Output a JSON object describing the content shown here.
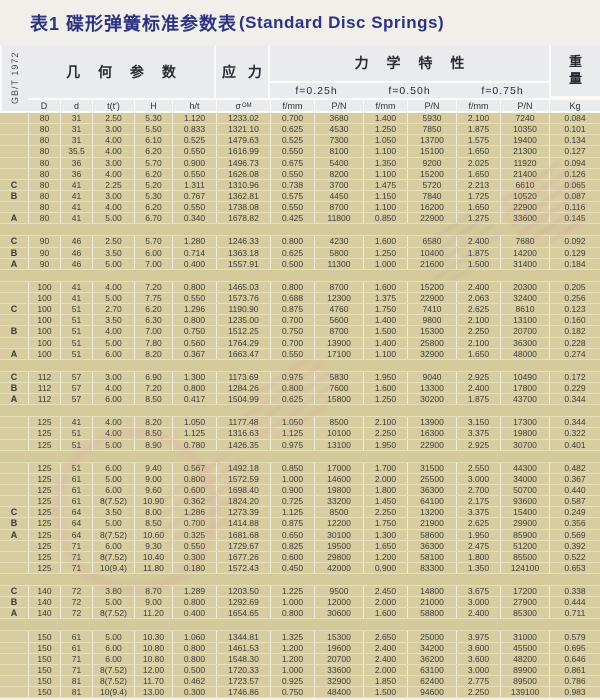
{
  "title": {
    "zh": "表1 碟形弹簧标准参数表",
    "en": "(Standard Disc Springs)"
  },
  "standard": "GB/T 1972",
  "header": {
    "geometry": "几 何 参 数",
    "stress": "应 力",
    "mechanical": "力 学 特 性",
    "weight": "重量",
    "deflections": {
      "f025": "f=0.25h",
      "f050": "f=0.50h",
      "f075": "f=0.75h"
    },
    "sigma": "σ",
    "sigma_sub": "OM",
    "cols": {
      "type": "",
      "D": "D",
      "d": "d",
      "t": "t(t′)",
      "H": "H",
      "ht": "h/t",
      "f": "f/mm",
      "p": "P/N",
      "kg": "Kg"
    }
  },
  "colors": {
    "title_text": "#2d3383",
    "header_bg": "#e9ebed",
    "cell_bg": "#d7cda0",
    "grid_line": "#f6f3e8",
    "row_line": "#e6dfbc",
    "text": "#3c3c3c",
    "watermark_pink": "#e080a4"
  },
  "table": {
    "rows": [
      [
        "",
        "80",
        "31",
        "2.50",
        "5.30",
        "1.120",
        "1233.02",
        "0.700",
        "3680",
        "1.400",
        "5930",
        "2.100",
        "7240",
        "0.084"
      ],
      [
        "",
        "80",
        "31",
        "3.00",
        "5.50",
        "0.833",
        "1321.10",
        "0.625",
        "4530",
        "1.250",
        "7850",
        "1.875",
        "10350",
        "0.101"
      ],
      [
        "",
        "80",
        "31",
        "4.00",
        "6.10",
        "0.525",
        "1479.63",
        "0.525",
        "7300",
        "1.050",
        "13700",
        "1.575",
        "19400",
        "0.134"
      ],
      [
        "",
        "80",
        "35.5",
        "4.00",
        "6.20",
        "0.550",
        "1616.99",
        "0.550",
        "8100",
        "1.100",
        "15100",
        "1.650",
        "21300",
        "0.127"
      ],
      [
        "",
        "80",
        "36",
        "3.00",
        "5.70",
        "0.900",
        "1496.73",
        "0.675",
        "5400",
        "1.350",
        "9200",
        "2.025",
        "11920",
        "0.094"
      ],
      [
        "",
        "80",
        "36",
        "4.00",
        "6.20",
        "0.550",
        "1626.08",
        "0.550",
        "8200",
        "1.100",
        "15200",
        "1.650",
        "21400",
        "0.126"
      ],
      [
        "C",
        "80",
        "41",
        "2.25",
        "5.20",
        "1.311",
        "1310.96",
        "0.738",
        "3700",
        "1.475",
        "5720",
        "2.213",
        "6610",
        "0.065"
      ],
      [
        "B",
        "80",
        "41",
        "3.00",
        "5.30",
        "0.767",
        "1362.81",
        "0.575",
        "4450",
        "1.150",
        "7840",
        "1.725",
        "10520",
        "0.087"
      ],
      [
        "",
        "80",
        "41",
        "4.00",
        "6.20",
        "0.550",
        "1738.08",
        "0.550",
        "8700",
        "1.100",
        "16200",
        "1.650",
        "22900",
        "0.116"
      ],
      [
        "A",
        "80",
        "41",
        "5.00",
        "6.70",
        "0.340",
        "1678.82",
        "0.425",
        "11800",
        "0.850",
        "22900",
        "1.275",
        "33600",
        "0.145"
      ],
      "gap",
      [
        "C",
        "90",
        "46",
        "2.50",
        "5.70",
        "1.280",
        "1246.33",
        "0.800",
        "4230",
        "1.600",
        "6580",
        "2.400",
        "7680",
        "0.092"
      ],
      [
        "B",
        "90",
        "46",
        "3.50",
        "6.00",
        "0.714",
        "1363.18",
        "0.625",
        "5800",
        "1.250",
        "10400",
        "1.875",
        "14200",
        "0.129"
      ],
      [
        "A",
        "90",
        "46",
        "5.00",
        "7.00",
        "0.400",
        "1557.91",
        "0.500",
        "11300",
        "1.000",
        "21600",
        "1.500",
        "31400",
        "0.184"
      ],
      "gap",
      [
        "",
        "100",
        "41",
        "4.00",
        "7.20",
        "0.800",
        "1465.03",
        "0.800",
        "8700",
        "1.600",
        "15200",
        "2.400",
        "20300",
        "0.205"
      ],
      [
        "",
        "100",
        "41",
        "5.00",
        "7.75",
        "0.550",
        "1573.76",
        "0.688",
        "12300",
        "1.375",
        "22900",
        "2.063",
        "32400",
        "0.256"
      ],
      [
        "C",
        "100",
        "51",
        "2.70",
        "6.20",
        "1.296",
        "1190.90",
        "0.875",
        "4760",
        "1.750",
        "7410",
        "2.625",
        "8610",
        "0.123"
      ],
      [
        "",
        "100",
        "51",
        "3.50",
        "6.30",
        "0.800",
        "1235.00",
        "0.700",
        "5600",
        "1.400",
        "9800",
        "2.100",
        "13100",
        "0.160"
      ],
      [
        "B",
        "100",
        "51",
        "4.00",
        "7.00",
        "0.750",
        "1512.25",
        "0.750",
        "8700",
        "1.500",
        "15300",
        "2.250",
        "20700",
        "0.182"
      ],
      [
        "",
        "100",
        "51",
        "5.00",
        "7.80",
        "0.560",
        "1764.29",
        "0.700",
        "13900",
        "1.400",
        "25800",
        "2.100",
        "36300",
        "0.228"
      ],
      [
        "A",
        "100",
        "51",
        "6.00",
        "8.20",
        "0.367",
        "1663.47",
        "0.550",
        "17100",
        "1.100",
        "32900",
        "1.650",
        "48000",
        "0.274"
      ],
      "gap",
      [
        "C",
        "112",
        "57",
        "3.00",
        "6.90",
        "1.300",
        "1173.69",
        "0.975",
        "5830",
        "1.950",
        "9040",
        "2.925",
        "10490",
        "0.172"
      ],
      [
        "B",
        "112",
        "57",
        "4.00",
        "7.20",
        "0.800",
        "1284.26",
        "0.800",
        "7600",
        "1.600",
        "13300",
        "2.400",
        "17800",
        "0.229"
      ],
      [
        "A",
        "112",
        "57",
        "6.00",
        "8.50",
        "0.417",
        "1504.99",
        "0.625",
        "15800",
        "1.250",
        "30200",
        "1.875",
        "43700",
        "0.344"
      ],
      "gap",
      [
        "",
        "125",
        "41",
        "4.00",
        "8.20",
        "1.050",
        "1177.48",
        "1.050",
        "8500",
        "2.100",
        "13900",
        "3.150",
        "17300",
        "0.344"
      ],
      [
        "",
        "125",
        "51",
        "4.00",
        "8.50",
        "1.125",
        "1316.63",
        "1.125",
        "10100",
        "2.250",
        "16300",
        "3.375",
        "19800",
        "0.322"
      ],
      [
        "",
        "125",
        "51",
        "5.00",
        "8.90",
        "0.780",
        "1426.35",
        "0.975",
        "13100",
        "1.950",
        "22900",
        "2.925",
        "30700",
        "0.401"
      ],
      "gap",
      [
        "",
        "125",
        "51",
        "6.00",
        "9.40",
        "0.567",
        "1492.18",
        "0.850",
        "17000",
        "1.700",
        "31500",
        "2.550",
        "44300",
        "0.482"
      ],
      [
        "",
        "125",
        "61",
        "5.00",
        "9.00",
        "0.800",
        "1572.59",
        "1.000",
        "14600",
        "2.000",
        "25500",
        "3.000",
        "34000",
        "0.367"
      ],
      [
        "",
        "125",
        "61",
        "6.00",
        "9.60",
        "0.600",
        "1698.40",
        "0.900",
        "19800",
        "1.800",
        "36300",
        "2.700",
        "50700",
        "0.440"
      ],
      [
        "",
        "125",
        "61",
        "8(7.52)",
        "10.90",
        "0.362",
        "1824.20",
        "0.725",
        "33200",
        "1.450",
        "64100",
        "2.175",
        "93600",
        "0.587"
      ],
      [
        "C",
        "125",
        "64",
        "3.50",
        "8.00",
        "1.286",
        "1273.39",
        "1.125",
        "8500",
        "2.250",
        "13200",
        "3.375",
        "15400",
        "0.249"
      ],
      [
        "B",
        "125",
        "64",
        "5.00",
        "8.50",
        "0.700",
        "1414.88",
        "0.875",
        "12200",
        "1.750",
        "21900",
        "2.625",
        "29900",
        "0.356"
      ],
      [
        "A",
        "125",
        "64",
        "8(7.52)",
        "10.60",
        "0.325",
        "1681.68",
        "0.650",
        "30100",
        "1.300",
        "58600",
        "1.950",
        "85900",
        "0.569"
      ],
      [
        "",
        "125",
        "71",
        "6.00",
        "9.30",
        "0.550",
        "1729.67",
        "0.825",
        "19500",
        "1.650",
        "36300",
        "2.475",
        "51200",
        "0.392"
      ],
      [
        "",
        "125",
        "71",
        "8(7.52)",
        "10.40",
        "0.300",
        "1677.26",
        "0.600",
        "29800",
        "1.200",
        "58100",
        "1.800",
        "85500",
        "0.522"
      ],
      [
        "",
        "125",
        "71",
        "10(9.4)",
        "11.80",
        "0.180",
        "1572.43",
        "0.450",
        "42000",
        "0.900",
        "83300",
        "1.350",
        "124100",
        "0.653"
      ],
      "gap",
      [
        "C",
        "140",
        "72",
        "3.80",
        "8.70",
        "1.289",
        "1203.50",
        "1.225",
        "9500",
        "2.450",
        "14800",
        "3.675",
        "17200",
        "0.338"
      ],
      [
        "B",
        "140",
        "72",
        "5.00",
        "9.00",
        "0.800",
        "1292.69",
        "1.000",
        "12000",
        "2.000",
        "21000",
        "3.000",
        "27900",
        "0.444"
      ],
      [
        "A",
        "140",
        "72",
        "8(7.52)",
        "11.20",
        "0.400",
        "1654.65",
        "0.800",
        "30600",
        "1.600",
        "58800",
        "2.400",
        "85300",
        "0.711"
      ],
      "gap",
      [
        "",
        "150",
        "61",
        "5.00",
        "10.30",
        "1.060",
        "1344.81",
        "1.325",
        "15300",
        "2.650",
        "25000",
        "3.975",
        "31000",
        "0.579"
      ],
      [
        "",
        "150",
        "61",
        "6.00",
        "10.80",
        "0.800",
        "1461.53",
        "1.200",
        "19600",
        "2.400",
        "34200",
        "3.600",
        "45500",
        "0.695"
      ],
      [
        "",
        "150",
        "71",
        "6.00",
        "10.80",
        "0.800",
        "1548.30",
        "1.200",
        "20700",
        "2.400",
        "36200",
        "3.600",
        "48200",
        "0.646"
      ],
      [
        "",
        "150",
        "71",
        "8(7.52)",
        "12.00",
        "0.500",
        "1720.33",
        "1.000",
        "33600",
        "2.000",
        "63100",
        "3.000",
        "89900",
        "0.861"
      ],
      [
        "",
        "150",
        "81",
        "8(7.52)",
        "11.70",
        "0.462",
        "1723.57",
        "0.925",
        "32900",
        "1.850",
        "62400",
        "2.775",
        "89500",
        "0.786"
      ],
      [
        "",
        "150",
        "81",
        "10(9.4)",
        "13.00",
        "0.300",
        "1746.86",
        "0.750",
        "48400",
        "1.500",
        "94600",
        "2.250",
        "139100",
        "0.983"
      ]
    ]
  }
}
